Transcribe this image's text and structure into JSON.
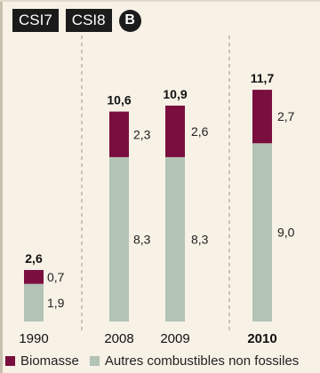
{
  "header": {
    "badges": [
      "CSI7",
      "CSI8"
    ],
    "circle_badge": "B"
  },
  "colors": {
    "background": "#f7f1e6",
    "biomasse": "#7a0e3f",
    "autres": "#b3c3b6"
  },
  "chart_data": {
    "type": "bar",
    "stacked": true,
    "categories": [
      "1990",
      "2008",
      "2009",
      "2010"
    ],
    "highlight_category": "2010",
    "series": [
      {
        "name": "Autres combustibles non fossiles",
        "values": [
          1.9,
          8.3,
          8.3,
          9.0
        ],
        "labels": [
          "1,9",
          "8,3",
          "8,3",
          "9,0"
        ]
      },
      {
        "name": "Biomasse",
        "values": [
          0.7,
          2.3,
          2.6,
          2.7
        ],
        "labels": [
          "0,7",
          "2,3",
          "2,6",
          "2,7"
        ]
      }
    ],
    "totals": [
      2.6,
      10.6,
      10.9,
      11.7
    ],
    "total_labels": [
      "2,6",
      "10,6",
      "10,9",
      "11,7"
    ],
    "legend": [
      "Biomasse",
      "Autres combustibles non fossiles"
    ],
    "legend_position": "bottom"
  }
}
